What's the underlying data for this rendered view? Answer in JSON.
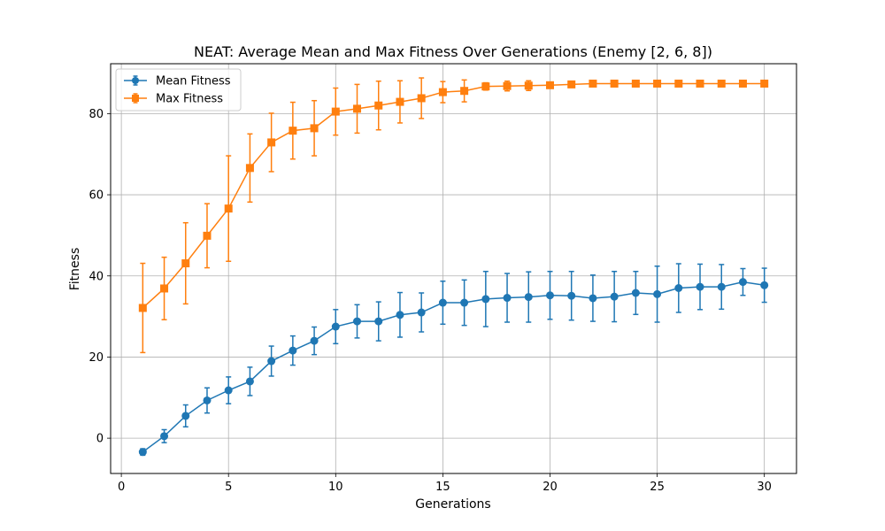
{
  "chart_data": {
    "type": "line",
    "title": "NEAT: Average Mean and Max Fitness Over Generations (Enemy [2, 6, 8])",
    "xlabel": "Generations",
    "ylabel": "Fitness",
    "xlim": [
      -0.5,
      31.5
    ],
    "ylim": [
      -8.7,
      92.3
    ],
    "xticks": [
      0,
      5,
      10,
      15,
      20,
      25,
      30
    ],
    "yticks": [
      0,
      20,
      40,
      60,
      80
    ],
    "grid": true,
    "legend_position": "top-left",
    "x": [
      1,
      2,
      3,
      4,
      5,
      6,
      7,
      8,
      9,
      10,
      11,
      12,
      13,
      14,
      15,
      16,
      17,
      18,
      19,
      20,
      21,
      22,
      23,
      24,
      25,
      26,
      27,
      28,
      29,
      30
    ],
    "series": [
      {
        "name": "Mean Fitness",
        "marker": "circle",
        "color": "#1f77b4",
        "values": [
          -3.4,
          0.5,
          5.5,
          9.3,
          11.8,
          14.0,
          19.0,
          21.6,
          24.0,
          27.5,
          28.8,
          28.8,
          30.4,
          31.0,
          33.4,
          33.4,
          34.3,
          34.6,
          34.8,
          35.2,
          35.1,
          34.5,
          34.9,
          35.8,
          35.5,
          37.0,
          37.3,
          37.3,
          38.5,
          37.7
        ],
        "errors": [
          0.8,
          1.6,
          2.7,
          3.1,
          3.3,
          3.5,
          3.7,
          3.6,
          3.4,
          4.2,
          4.1,
          4.8,
          5.5,
          4.8,
          5.3,
          5.6,
          6.8,
          6.0,
          6.2,
          5.9,
          6.0,
          5.7,
          6.2,
          5.3,
          6.9,
          6.0,
          5.6,
          5.5,
          3.3,
          4.2
        ]
      },
      {
        "name": "Max Fitness",
        "marker": "square",
        "color": "#ff7f0e",
        "values": [
          32.1,
          36.9,
          43.1,
          49.9,
          56.6,
          66.6,
          72.9,
          75.8,
          76.4,
          80.5,
          81.2,
          82.0,
          82.9,
          83.8,
          85.3,
          85.6,
          86.7,
          86.8,
          86.9,
          87.0,
          87.2,
          87.4,
          87.4,
          87.4,
          87.4,
          87.4,
          87.4,
          87.4,
          87.4,
          87.4
        ],
        "errors": [
          11.0,
          7.7,
          10.0,
          7.9,
          13.0,
          8.4,
          7.2,
          7.0,
          6.8,
          5.8,
          6.0,
          6.0,
          5.2,
          5.0,
          2.6,
          2.7,
          0.9,
          1.2,
          1.2,
          0.6,
          0.5,
          0.3,
          0.3,
          0.3,
          0.3,
          0.3,
          0.3,
          0.3,
          0.3,
          0.3
        ]
      }
    ]
  }
}
